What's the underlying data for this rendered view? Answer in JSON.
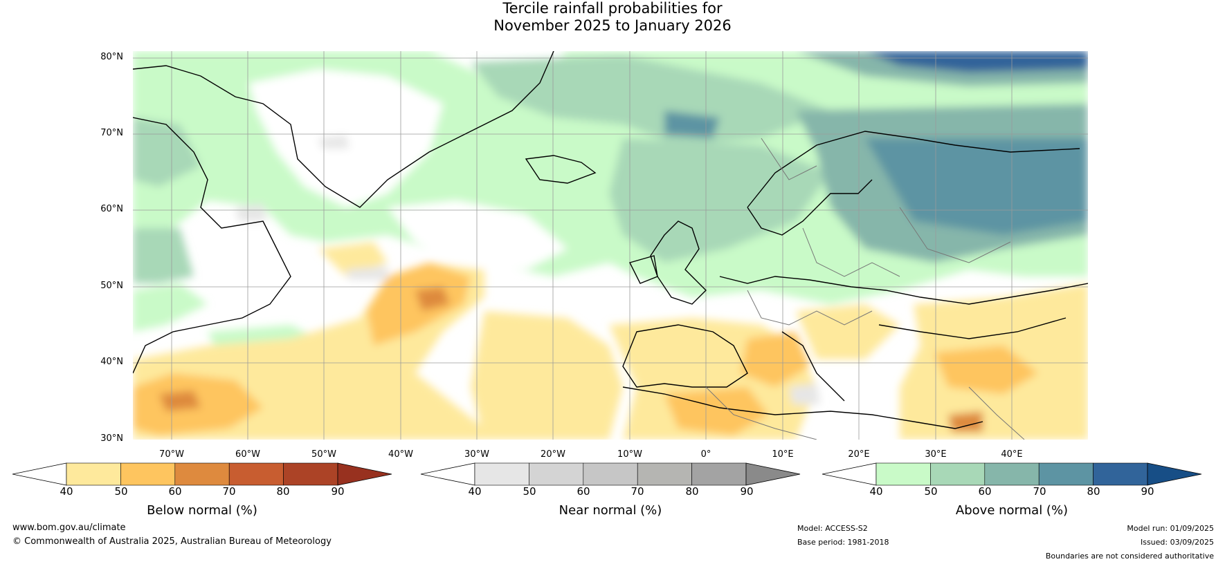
{
  "title": {
    "line1": "Tercile rainfall probabilities for",
    "line2": "November 2025 to January 2026"
  },
  "map": {
    "lat_labels": [
      "80°N",
      "70°N",
      "60°N",
      "50°N",
      "40°N",
      "30°N"
    ],
    "lon_labels": [
      "70°W",
      "60°W",
      "50°W",
      "40°W",
      "30°W",
      "20°W",
      "10°W",
      "0°",
      "10°E",
      "20°E",
      "30°E",
      "40°E"
    ]
  },
  "colorbars": [
    {
      "label": "Below normal (%)",
      "ticks": [
        "40",
        "50",
        "60",
        "70",
        "80",
        "90"
      ],
      "colors": [
        "#ffffff",
        "#fee99c",
        "#fec55f",
        "#de8a3e",
        "#c85d30",
        "#ac4326",
        "#98311f"
      ]
    },
    {
      "label": "Near normal (%)",
      "ticks": [
        "40",
        "50",
        "60",
        "70",
        "80",
        "90"
      ],
      "colors": [
        "#ffffff",
        "#e6e6e6",
        "#d4d4d4",
        "#c6c6c6",
        "#b5b5b2",
        "#a3a3a3",
        "#8a8a8a"
      ]
    },
    {
      "label": "Above normal (%)",
      "ticks": [
        "40",
        "50",
        "60",
        "70",
        "80",
        "90"
      ],
      "colors": [
        "#ffffff",
        "#c9fac8",
        "#a8d8b7",
        "#86b6aa",
        "#5d94a3",
        "#31649a",
        "#174e86"
      ]
    }
  ],
  "footer": {
    "website": "www.bom.gov.au/climate",
    "copyright": "© Commonwealth of Australia 2025, Australian Bureau of Meteorology",
    "model": "Model: ACCESS-S2",
    "base_period": "Base period: 1981-2018",
    "model_run": "Model run: 01/09/2025",
    "issued": "Issued: 03/09/2025",
    "disclaimer": "Boundaries are not considered authoritative"
  }
}
